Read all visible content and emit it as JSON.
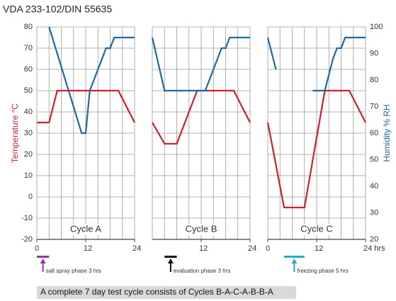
{
  "title": "VDA 233-102/DIN 55635",
  "footer": "A complete 7 day test cycle consists of Cycles B-A-C-A-B-B-A",
  "chart_data": [
    {
      "type": "line",
      "label": "Cycle A",
      "ylabel": "Temperature °C",
      "ylim": [
        -20,
        80
      ],
      "yticks": [
        -20,
        -10,
        0,
        10,
        20,
        30,
        40,
        50,
        60,
        70,
        80
      ],
      "xlim": [
        0,
        24
      ],
      "xticks": [
        0,
        12,
        24
      ],
      "grid": true,
      "phase": {
        "label": "salt spray phase 3 hrs",
        "start": 0,
        "end": 3,
        "color": "#8e3a9a"
      },
      "series": [
        {
          "color": "#d0202f",
          "x": [
            0,
            3,
            5,
            20,
            24
          ],
          "values": [
            35,
            35,
            50,
            50,
            35
          ]
        },
        {
          "color": "#1f6aa0",
          "axis": "y2",
          "x": [
            3,
            11,
            12,
            13,
            17,
            18,
            19,
            24
          ],
          "values": [
            100,
            60,
            60,
            76,
            92,
            92,
            96,
            96
          ]
        }
      ]
    },
    {
      "type": "line",
      "label": "Cycle B",
      "xlim": [
        0,
        24
      ],
      "xticks": [
        12,
        24
      ],
      "grid": true,
      "phase": {
        "label": "evaluation phase 3 hrs",
        "start": 3,
        "end": 6,
        "color": "#111111"
      },
      "series": [
        {
          "color": "#d0202f",
          "x": [
            0,
            3,
            6,
            11,
            20,
            24
          ],
          "values": [
            35,
            25,
            25,
            50,
            50,
            35
          ]
        },
        {
          "color": "#1f6aa0",
          "axis": "y2",
          "x": [
            0,
            3,
            13,
            17,
            18,
            19,
            24
          ],
          "values": [
            96,
            76,
            76,
            92,
            92,
            96,
            96
          ]
        }
      ]
    },
    {
      "type": "line",
      "label": "Cycle C",
      "y2label": "Humidity % RH",
      "y2lim": [
        20,
        100
      ],
      "y2ticks": [
        20,
        30,
        40,
        50,
        60,
        70,
        80,
        90,
        100
      ],
      "xlim": [
        0,
        24
      ],
      "xticks": [
        0,
        12,
        {
          "value": 24,
          "label": "24 hrs"
        }
      ],
      "grid": true,
      "phase": {
        "label": "freezing phase 5 hrs",
        "start": 4,
        "end": 9,
        "color": "#2aa8d0"
      },
      "series": [
        {
          "color": "#d0202f",
          "x": [
            0,
            4,
            9,
            14,
            20,
            24
          ],
          "values": [
            35,
            -5,
            -5,
            50,
            50,
            35
          ]
        },
        {
          "color": "#1f6aa0",
          "axis": "y2",
          "x": [
            0,
            2,
            null,
            11,
            14,
            16,
            17,
            18,
            19,
            24
          ],
          "values": [
            96,
            84,
            null,
            76,
            76,
            88,
            92,
            92,
            96,
            96
          ]
        }
      ]
    }
  ]
}
